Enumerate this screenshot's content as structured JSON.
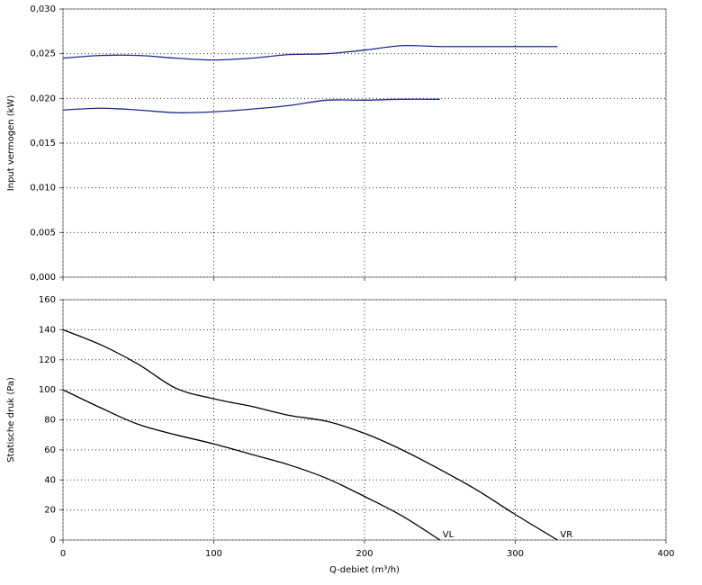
{
  "chart_data": [
    {
      "type": "line",
      "ylabel": "Input vermogen (kW)",
      "xlim": [
        0,
        400
      ],
      "ylim": [
        0,
        0.03
      ],
      "yticks": [
        {
          "value": 0,
          "label": "0,000"
        },
        {
          "value": 0.005,
          "label": "0,005"
        },
        {
          "value": 0.01,
          "label": "0,010"
        },
        {
          "value": 0.015,
          "label": "0,015"
        },
        {
          "value": 0.02,
          "label": "0,020"
        },
        {
          "value": 0.025,
          "label": "0,025"
        },
        {
          "value": 0.03,
          "label": "0,030"
        }
      ],
      "grid": true,
      "series": [
        {
          "color": "#1c2a8c",
          "x": [
            0,
            25,
            50,
            75,
            100,
            125,
            150,
            175,
            200,
            225,
            250,
            275,
            300,
            328
          ],
          "values": [
            0.0245,
            0.0248,
            0.0248,
            0.0245,
            0.0243,
            0.0245,
            0.0249,
            0.025,
            0.0254,
            0.0259,
            0.0258,
            0.0258,
            0.0258,
            0.0258
          ]
        },
        {
          "color": "#1c2a8c",
          "x": [
            0,
            25,
            50,
            75,
            100,
            125,
            150,
            175,
            200,
            225,
            250
          ],
          "values": [
            0.0187,
            0.0189,
            0.0187,
            0.0184,
            0.0185,
            0.0188,
            0.0192,
            0.0198,
            0.0198,
            0.0199,
            0.0199
          ]
        }
      ]
    },
    {
      "type": "line",
      "xlabel": "Q-debiet (m³/h)",
      "ylabel": "Statische druk (Pa)",
      "xlim": [
        0,
        400
      ],
      "ylim": [
        0,
        160
      ],
      "xticks": [
        0,
        100,
        200,
        300,
        400
      ],
      "yticks": [
        0,
        20,
        40,
        60,
        80,
        100,
        120,
        140,
        160
      ],
      "grid": true,
      "series": [
        {
          "name": "VL",
          "color": "#000000",
          "x": [
            0,
            25,
            50,
            75,
            100,
            125,
            150,
            175,
            200,
            225,
            250
          ],
          "values": [
            100,
            88,
            77,
            70,
            64,
            57,
            50,
            41,
            29,
            16,
            0
          ]
        },
        {
          "name": "VR",
          "color": "#000000",
          "x": [
            0,
            25,
            50,
            75,
            100,
            125,
            150,
            175,
            200,
            225,
            250,
            275,
            300,
            328
          ],
          "values": [
            140,
            130,
            117,
            101,
            94,
            89,
            83,
            79,
            71,
            60,
            47,
            33,
            17,
            0
          ]
        }
      ]
    }
  ]
}
